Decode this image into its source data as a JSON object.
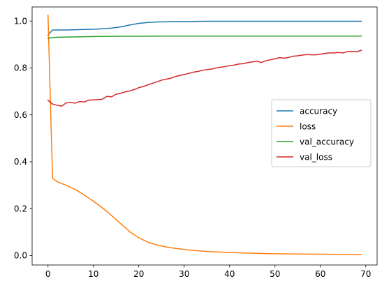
{
  "chart_data": {
    "type": "line",
    "title": "",
    "xlabel": "",
    "ylabel": "",
    "xlim": [
      -3.5,
      72.5
    ],
    "ylim": [
      -0.04,
      1.06
    ],
    "xticks": [
      0,
      10,
      20,
      30,
      40,
      50,
      60,
      70
    ],
    "yticks": [
      0.0,
      0.2,
      0.4,
      0.6,
      0.8,
      1.0
    ],
    "ytick_labels": [
      "0.0",
      "0.2",
      "0.4",
      "0.6",
      "0.8",
      "1.0"
    ],
    "grid": false,
    "legend": "center-right",
    "series": [
      {
        "name": "accuracy",
        "color": "#1f77b4",
        "x": [
          0,
          1,
          2,
          4,
          6,
          8,
          10,
          12,
          14,
          16,
          18,
          20,
          22,
          24,
          26,
          28,
          30,
          35,
          40,
          45,
          50,
          55,
          60,
          65,
          69
        ],
        "y": [
          0.94,
          0.962,
          0.962,
          0.962,
          0.963,
          0.964,
          0.965,
          0.967,
          0.97,
          0.975,
          0.983,
          0.99,
          0.994,
          0.996,
          0.997,
          0.998,
          0.998,
          0.999,
          0.999,
          0.999,
          0.999,
          0.999,
          0.999,
          0.999,
          0.999
        ]
      },
      {
        "name": "loss",
        "color": "#ff7f0e",
        "x": [
          0,
          1,
          2,
          4,
          6,
          8,
          10,
          12,
          14,
          16,
          18,
          20,
          22,
          24,
          26,
          28,
          30,
          32,
          35,
          40,
          45,
          50,
          55,
          60,
          65,
          69
        ],
        "y": [
          1.025,
          0.33,
          0.315,
          0.3,
          0.282,
          0.258,
          0.232,
          0.203,
          0.171,
          0.136,
          0.102,
          0.076,
          0.057,
          0.045,
          0.037,
          0.031,
          0.026,
          0.022,
          0.018,
          0.013,
          0.01,
          0.008,
          0.007,
          0.006,
          0.005,
          0.005
        ]
      },
      {
        "name": "val_accuracy",
        "color": "#2ca02c",
        "x": [
          0,
          2,
          5,
          10,
          15,
          20,
          25,
          30,
          40,
          50,
          60,
          69
        ],
        "y": [
          0.927,
          0.931,
          0.932,
          0.934,
          0.935,
          0.935,
          0.936,
          0.936,
          0.936,
          0.936,
          0.936,
          0.936
        ]
      },
      {
        "name": "val_loss",
        "color": "#d62728",
        "x": [
          0,
          1,
          2,
          3,
          4,
          5,
          6,
          7,
          8,
          9,
          10,
          11,
          12,
          13,
          14,
          15,
          16,
          17,
          18,
          19,
          20,
          21,
          22,
          23,
          24,
          25,
          26,
          27,
          28,
          29,
          30,
          31,
          32,
          33,
          34,
          35,
          36,
          37,
          38,
          39,
          40,
          41,
          42,
          43,
          44,
          45,
          46,
          47,
          48,
          49,
          50,
          51,
          52,
          53,
          54,
          55,
          56,
          57,
          58,
          59,
          60,
          61,
          62,
          63,
          64,
          65,
          66,
          67,
          68,
          69
        ],
        "y": [
          0.662,
          0.646,
          0.641,
          0.637,
          0.651,
          0.653,
          0.65,
          0.657,
          0.655,
          0.663,
          0.664,
          0.665,
          0.667,
          0.679,
          0.677,
          0.688,
          0.692,
          0.698,
          0.702,
          0.708,
          0.716,
          0.721,
          0.728,
          0.735,
          0.741,
          0.748,
          0.752,
          0.756,
          0.763,
          0.768,
          0.772,
          0.777,
          0.782,
          0.785,
          0.79,
          0.793,
          0.795,
          0.8,
          0.803,
          0.806,
          0.81,
          0.812,
          0.817,
          0.818,
          0.823,
          0.826,
          0.829,
          0.823,
          0.831,
          0.835,
          0.839,
          0.844,
          0.842,
          0.845,
          0.85,
          0.852,
          0.855,
          0.857,
          0.856,
          0.856,
          0.859,
          0.862,
          0.864,
          0.864,
          0.866,
          0.864,
          0.87,
          0.871,
          0.869,
          0.875
        ]
      }
    ]
  }
}
